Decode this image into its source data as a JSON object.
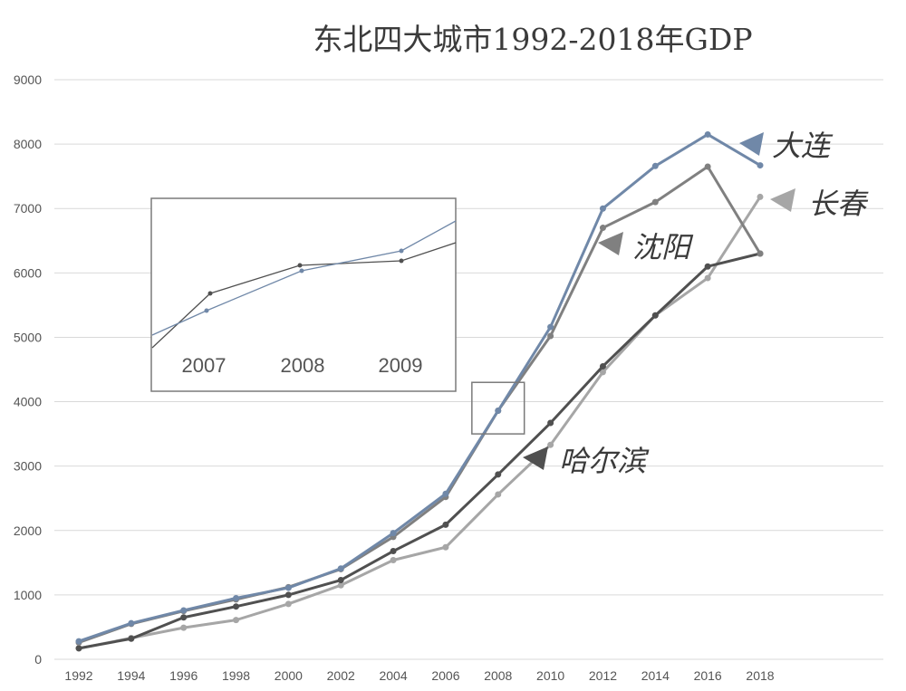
{
  "chart_data": {
    "type": "line",
    "title": "东北四大城市1992-2018年GDP",
    "xlabel": "",
    "ylabel": "",
    "x": [
      1992,
      1994,
      1996,
      1998,
      2000,
      2002,
      2004,
      2006,
      2008,
      2010,
      2012,
      2014,
      2016,
      2018
    ],
    "x_tick_labels": [
      "1992",
      "1994",
      "1996",
      "1998",
      "2000",
      "2002",
      "2004",
      "2006",
      "2008",
      "2010",
      "2012",
      "2014",
      "2016",
      "2018"
    ],
    "ylim": [
      0,
      9000
    ],
    "y_ticks": [
      0,
      1000,
      2000,
      3000,
      4000,
      5000,
      6000,
      7000,
      8000,
      9000
    ],
    "y_tick_labels": [
      "0",
      "1000",
      "2000",
      "3000",
      "4000",
      "5000",
      "6000",
      "7000",
      "8000",
      "9000"
    ],
    "grid": true,
    "legend": "none",
    "series": [
      {
        "name": "大连",
        "color": "#7088a8",
        "values": [
          280,
          560,
          760,
          950,
          1110,
          1410,
          1960,
          2570,
          3860,
          5160,
          7000,
          7660,
          8150,
          7670
        ]
      },
      {
        "name": "沈阳",
        "color": "#808080",
        "values": [
          260,
          550,
          750,
          930,
          1120,
          1400,
          1900,
          2520,
          3860,
          5020,
          6700,
          7100,
          7650,
          6300
        ]
      },
      {
        "name": "长春",
        "color": "#a6a6a6",
        "values": [
          170,
          330,
          490,
          610,
          860,
          1150,
          1540,
          1740,
          2560,
          3330,
          4460,
          5340,
          5920,
          7180
        ]
      },
      {
        "name": "哈尔滨",
        "color": "#505050",
        "values": [
          170,
          320,
          650,
          820,
          1000,
          1230,
          1680,
          2090,
          2870,
          3670,
          4550,
          5340,
          6100,
          6300
        ]
      }
    ],
    "annotations": {
      "inset_box": {
        "x_range": [
          2007,
          2009
        ],
        "y_range": [
          3500,
          4300
        ]
      },
      "inset_tick_labels": [
        "2007",
        "2008",
        "2009"
      ]
    }
  }
}
